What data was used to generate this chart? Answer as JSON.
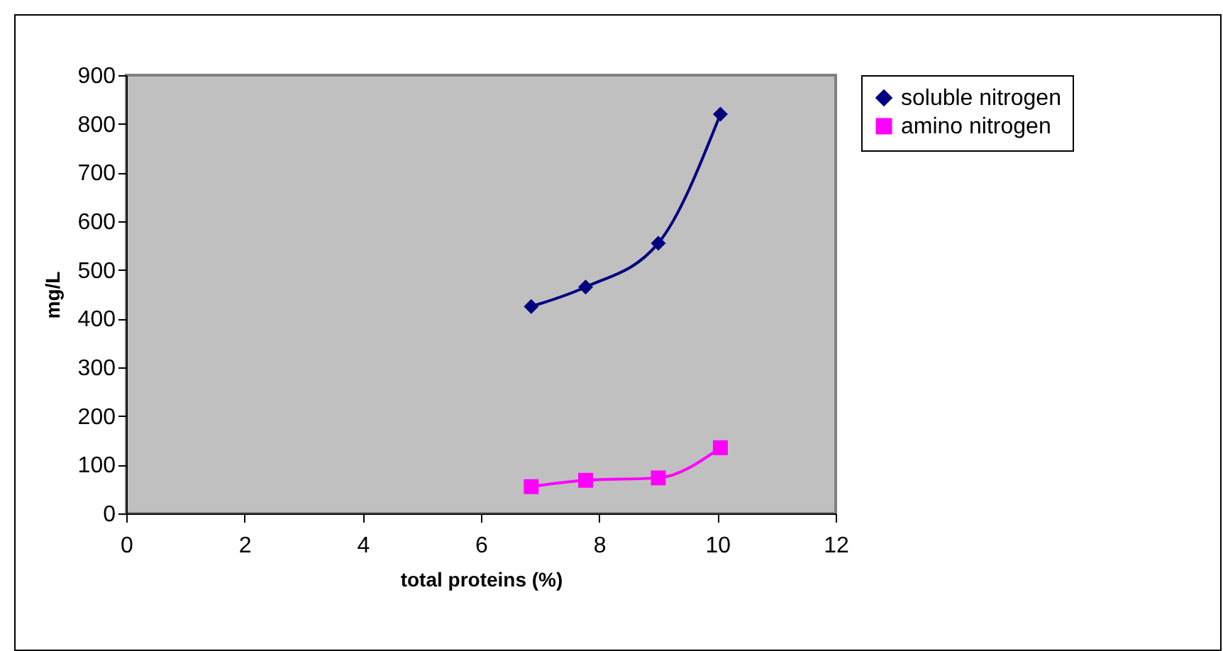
{
  "chart_data": {
    "type": "line",
    "xlabel": "total proteins (%)",
    "ylabel": "mg/L",
    "x": [
      6.85,
      7.77,
      9.0,
      10.05
    ],
    "series": [
      {
        "name": "soluble nitrogen",
        "color": "#000080",
        "marker": "diamond",
        "values": [
          425,
          465,
          555,
          820
        ]
      },
      {
        "name": "amino nitrogen",
        "color": "#ff00ff",
        "marker": "square",
        "values": [
          55,
          68,
          73,
          135
        ]
      }
    ],
    "xlim": [
      0,
      12
    ],
    "xticks": [
      0,
      2,
      4,
      6,
      8,
      10,
      12
    ],
    "ylim": [
      0,
      900
    ],
    "yticks": [
      0,
      100,
      200,
      300,
      400,
      500,
      600,
      700,
      800,
      900
    ],
    "grid": false,
    "legend": "right",
    "line_style": "solid"
  }
}
